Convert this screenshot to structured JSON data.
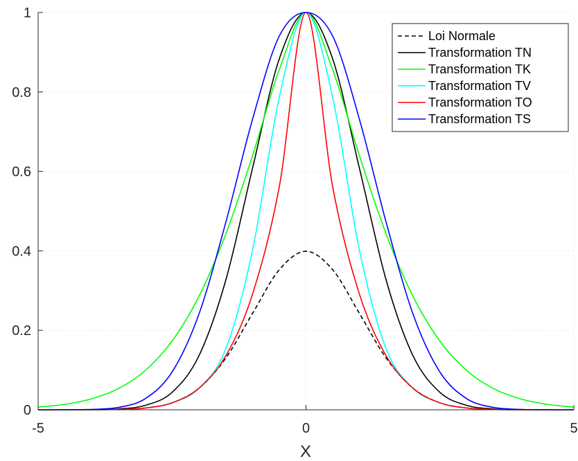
{
  "chart_data": {
    "type": "line",
    "title": "",
    "xlabel": "X",
    "ylabel": "",
    "xlim": [
      -5,
      5
    ],
    "ylim": [
      0,
      1
    ],
    "xticks": [
      "-5",
      "0",
      "5"
    ],
    "yticks": [
      "0",
      "0.2",
      "0.4",
      "0.6",
      "0.8",
      "1"
    ],
    "grid": true,
    "legend_position": "top-right",
    "x": [
      -5,
      -4.5,
      -4,
      -3.5,
      -3,
      -2.5,
      -2,
      -1.5,
      -1,
      -0.5,
      0,
      0.5,
      1,
      1.5,
      2,
      2.5,
      3,
      3.5,
      4,
      4.5,
      5
    ],
    "series": [
      {
        "name": "Loi Normale",
        "color": "#000000",
        "dash": "dashed",
        "values": [
          0.0,
          0.0,
          0.0001,
          0.0009,
          0.0044,
          0.0175,
          0.054,
          0.1295,
          0.242,
          0.3521,
          0.3989,
          0.3521,
          0.242,
          0.1295,
          0.054,
          0.0175,
          0.0044,
          0.0009,
          0.0001,
          0.0,
          0.0
        ]
      },
      {
        "name": "Transformation TN",
        "color": "#000000",
        "dash": "solid",
        "values": [
          0.0,
          0.0,
          0.0003,
          0.0022,
          0.0111,
          0.0439,
          0.1353,
          0.3247,
          0.6065,
          0.8825,
          1.0,
          0.8825,
          0.6065,
          0.3247,
          0.1353,
          0.0439,
          0.0111,
          0.0022,
          0.0003,
          0.0,
          0.0
        ]
      },
      {
        "name": "Transformation TK",
        "color": "#00ff00",
        "dash": "solid",
        "values": [
          0.0067,
          0.0137,
          0.0276,
          0.0534,
          0.0988,
          0.1729,
          0.2849,
          0.441,
          0.6384,
          0.8554,
          1.0,
          0.8554,
          0.6384,
          0.441,
          0.2849,
          0.1729,
          0.0988,
          0.0534,
          0.0276,
          0.0137,
          0.0067
        ]
      },
      {
        "name": "Transformation TV",
        "color": "#00ffff",
        "dash": "solid",
        "values": [
          0.0,
          0.0,
          0.0001,
          0.0009,
          0.0044,
          0.0175,
          0.054,
          0.152,
          0.4,
          0.785,
          1.0,
          0.785,
          0.4,
          0.152,
          0.054,
          0.0175,
          0.0044,
          0.0009,
          0.0001,
          0.0,
          0.0
        ]
      },
      {
        "name": "Transformation TO",
        "color": "#ff0000",
        "dash": "solid",
        "values": [
          0.0,
          0.0,
          0.0001,
          0.0009,
          0.0044,
          0.0175,
          0.054,
          0.135,
          0.29,
          0.56,
          1.0,
          0.56,
          0.29,
          0.135,
          0.054,
          0.0175,
          0.0044,
          0.0009,
          0.0001,
          0.0,
          0.0
        ]
      },
      {
        "name": "Transformation TS",
        "color": "#0000ff",
        "dash": "solid",
        "values": [
          0.0,
          0.0001,
          0.001,
          0.006,
          0.028,
          0.095,
          0.24,
          0.47,
          0.73,
          0.94,
          1.0,
          0.94,
          0.73,
          0.47,
          0.24,
          0.095,
          0.028,
          0.006,
          0.001,
          0.0001,
          0.0
        ]
      }
    ]
  }
}
